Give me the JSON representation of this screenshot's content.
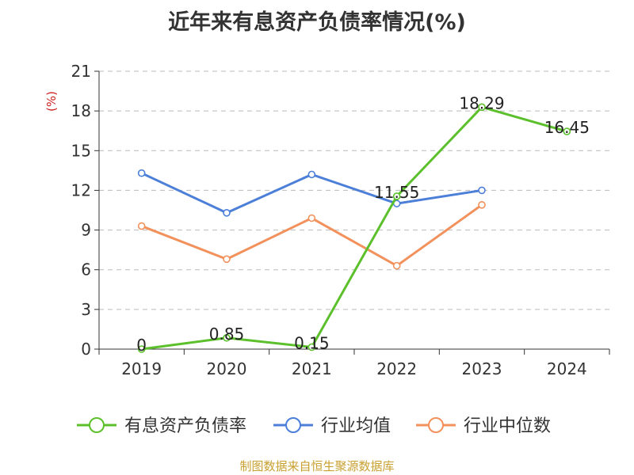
{
  "chart_data": {
    "type": "line",
    "title": "近年来有息资产负债率情况(%)",
    "ylabel": "(%)",
    "categories": [
      "2019",
      "2020",
      "2021",
      "2022",
      "2023",
      "2024"
    ],
    "yticks": [
      "0",
      "3",
      "6",
      "9",
      "12",
      "15",
      "18",
      "21"
    ],
    "ylim": [
      0,
      21
    ],
    "grid": true,
    "legend_position": "bottom",
    "series": [
      {
        "name": "有息资产负债率",
        "color": "#5cc02c",
        "values": [
          0,
          0.85,
          0.15,
          11.55,
          18.29,
          16.45
        ],
        "labels": [
          "0",
          "0.85",
          "0.15",
          "11.55",
          "18.29",
          "16.45"
        ]
      },
      {
        "name": "行业均值",
        "color": "#4c7fd8",
        "values": [
          13.3,
          10.3,
          13.2,
          11.0,
          12.0,
          null
        ]
      },
      {
        "name": "行业中位数",
        "color": "#f2915c",
        "values": [
          9.3,
          6.8,
          9.9,
          6.3,
          10.9,
          null
        ]
      }
    ]
  },
  "footer": {
    "source": "制图数据来自恒生聚源数据库"
  }
}
